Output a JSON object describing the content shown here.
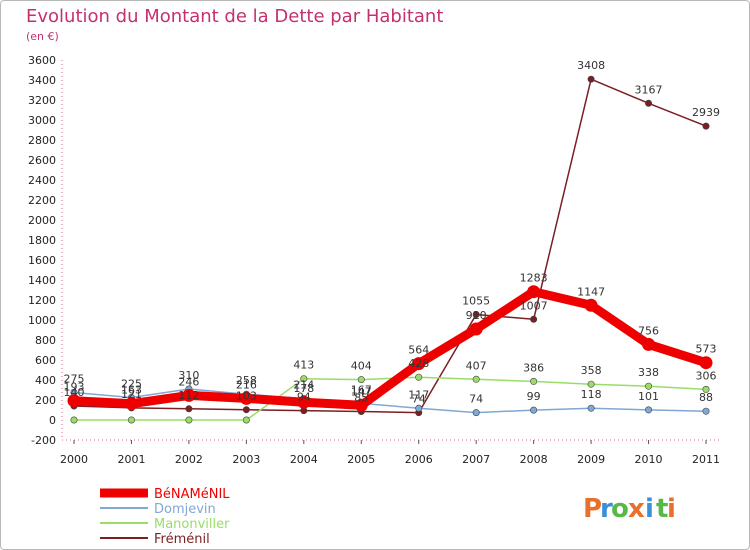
{
  "header": {
    "title": "Evolution du Montant de la Dette par Habitant",
    "subtitle": "(en €)"
  },
  "logo": {
    "letters": [
      "P",
      "r",
      "o",
      "x",
      "i",
      "t",
      "i"
    ],
    "colors": [
      "#e8702a",
      "#3a8fd8",
      "#58b947",
      "#e8702a",
      "#3a8fd8",
      "#58b947",
      "#e8702a"
    ]
  },
  "chart_data": {
    "type": "line",
    "title": "Evolution du Montant de la Dette par Habitant",
    "subtitle": "(en €)",
    "xlabel": "",
    "ylabel": "",
    "categories": [
      "2000",
      "2001",
      "2002",
      "2003",
      "2004",
      "2005",
      "2006",
      "2007",
      "2008",
      "2009",
      "2010",
      "2011"
    ],
    "ylim": [
      -200,
      3600
    ],
    "yticks": [
      -200,
      0,
      200,
      400,
      600,
      800,
      1000,
      1200,
      1400,
      1600,
      1800,
      2000,
      2200,
      2400,
      2600,
      2800,
      3000,
      3200,
      3400,
      3600
    ],
    "grid": false,
    "legend_position": "bottom-left",
    "series": [
      {
        "name": "Fréménil",
        "color": "#7a1f24",
        "values": [
          140,
          121,
          112,
          103,
          94,
          85,
          74,
          1055,
          1007,
          3408,
          3167,
          2939
        ],
        "labels": [
          "140",
          "121",
          "112",
          "103",
          "94",
          "85",
          "74",
          "1055",
          "1007",
          "3408",
          "3167",
          "2939"
        ]
      },
      {
        "name": "Manonviller",
        "color": "#99dd66",
        "values": [
          0,
          0,
          0,
          0,
          413,
          404,
          428,
          407,
          386,
          358,
          338,
          306
        ],
        "labels": [
          "",
          "",
          "",
          "",
          "413",
          "404",
          "428",
          "407",
          "386",
          "358",
          "338",
          "306"
        ]
      },
      {
        "name": "Domjevin",
        "color": "#7fa9d4",
        "values": [
          275,
          225,
          310,
          258,
          214,
          167,
          117,
          74,
          99,
          118,
          101,
          88
        ],
        "labels": [
          "275",
          "225",
          "310",
          "258",
          "214",
          "167",
          "117",
          "74",
          "99",
          "118",
          "101",
          "88"
        ]
      },
      {
        "name": "BéNAMéNIL",
        "color": "#ee0000",
        "values": [
          193,
          163,
          246,
          216,
          178,
          147,
          564,
          910,
          1283,
          1147,
          756,
          573
        ],
        "labels": [
          "193",
          "163",
          "246",
          "216",
          "178",
          "147",
          "564",
          "910",
          "1283",
          "1147",
          "756",
          "573"
        ]
      }
    ],
    "legend": [
      "BéNAMéNIL",
      "Domjevin",
      "Manonviller",
      "Fréménil"
    ]
  }
}
